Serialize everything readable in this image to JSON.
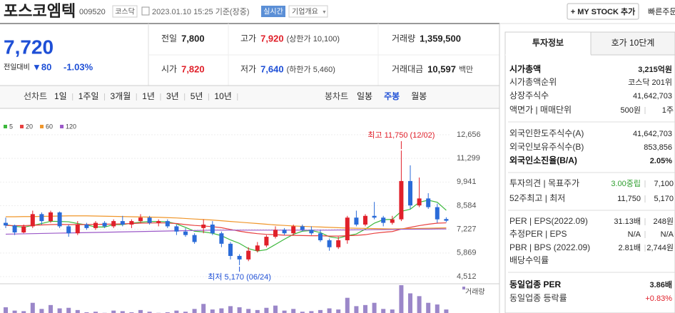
{
  "header": {
    "title": "포스코엠텍",
    "code": "009520",
    "market": "코스닥",
    "datetime": "2023.01.10 15:25 기준(장중)",
    "realtime": "실시간",
    "company_info": "기업개요",
    "mystock": "+ MY STOCK 추가",
    "quick_order": "빠른주문"
  },
  "price": {
    "current": "7,720",
    "change_label": "전일대비",
    "change": "▼80",
    "change_pct": "-1.03%"
  },
  "summary": {
    "rows": [
      [
        {
          "label": "전일",
          "value": "7,800",
          "color": "#222222"
        },
        {
          "label": "고가",
          "value": "7,920",
          "note": "(상한가 10,100)",
          "color": "#e0202a"
        },
        {
          "label": "거래량",
          "value": "1,359,500",
          "color": "#222222"
        }
      ],
      [
        {
          "label": "시가",
          "value": "7,820",
          "color": "#e0202a"
        },
        {
          "label": "저가",
          "value": "7,640",
          "note": "(하한가 5,460)",
          "color": "#1e4fd6"
        },
        {
          "label": "거래대금",
          "value": "10,597",
          "note": "백만",
          "color": "#222222"
        }
      ]
    ]
  },
  "tabs": {
    "line_label": "선차트",
    "line_periods": [
      "1일",
      "1주일",
      "3개월",
      "1년",
      "3년",
      "5년",
      "10년"
    ],
    "candle_label": "봉차트",
    "candle_periods": [
      "일봉",
      "주봉",
      "월봉"
    ],
    "selected_candle_period": 1
  },
  "chart": {
    "type": "candlestick",
    "ylim": [
      4512,
      12656
    ],
    "yticks": [
      {
        "value": 12656,
        "label": "12,656"
      },
      {
        "value": 11299,
        "label": "11,299"
      },
      {
        "value": 9941,
        "label": "9,941"
      },
      {
        "value": 8584,
        "label": "8,584"
      },
      {
        "value": 7227,
        "label": "7,227"
      },
      {
        "value": 5869,
        "label": "5,869"
      },
      {
        "value": 4512,
        "label": "4,512"
      }
    ],
    "up_color": "#e0202a",
    "down_color": "#2a6bd8",
    "candles": [
      {
        "open": 7600,
        "high": 7900,
        "low": 7300,
        "close": 7450
      },
      {
        "open": 7450,
        "high": 7500,
        "low": 6900,
        "close": 7050
      },
      {
        "open": 7050,
        "high": 7500,
        "low": 7000,
        "close": 7400
      },
      {
        "open": 7400,
        "high": 8300,
        "low": 7300,
        "close": 8100
      },
      {
        "open": 8100,
        "high": 8200,
        "low": 7500,
        "close": 7700
      },
      {
        "open": 7700,
        "high": 8300,
        "low": 7600,
        "close": 8200
      },
      {
        "open": 8200,
        "high": 8250,
        "low": 7300,
        "close": 7400
      },
      {
        "open": 7400,
        "high": 7500,
        "low": 6800,
        "close": 7000
      },
      {
        "open": 7000,
        "high": 7700,
        "low": 6900,
        "close": 7500
      },
      {
        "open": 7500,
        "high": 7600,
        "low": 7200,
        "close": 7300
      },
      {
        "open": 7300,
        "high": 7700,
        "low": 7200,
        "close": 7600
      },
      {
        "open": 7600,
        "high": 7700,
        "low": 7300,
        "close": 7400
      },
      {
        "open": 7400,
        "high": 7800,
        "low": 7300,
        "close": 7700
      },
      {
        "open": 7700,
        "high": 8000,
        "low": 7400,
        "close": 7500
      },
      {
        "open": 7500,
        "high": 7800,
        "low": 7300,
        "close": 7700
      },
      {
        "open": 7700,
        "high": 8100,
        "low": 7600,
        "close": 7900
      },
      {
        "open": 7900,
        "high": 8000,
        "low": 7500,
        "close": 7600
      },
      {
        "open": 7600,
        "high": 7800,
        "low": 7400,
        "close": 7700
      },
      {
        "open": 7700,
        "high": 7800,
        "low": 7300,
        "close": 7400
      },
      {
        "open": 7400,
        "high": 7500,
        "low": 6900,
        "close": 7100
      },
      {
        "open": 7100,
        "high": 7300,
        "low": 6800,
        "close": 6900
      },
      {
        "open": 6900,
        "high": 7000,
        "low": 6400,
        "close": 6500
      },
      {
        "open": 7300,
        "high": 7800,
        "low": 7000,
        "close": 7500
      },
      {
        "open": 7500,
        "high": 7700,
        "low": 6900,
        "close": 7000
      },
      {
        "open": 7000,
        "high": 7100,
        "low": 6200,
        "close": 6400
      },
      {
        "open": 6400,
        "high": 6500,
        "low": 5500,
        "close": 5700
      },
      {
        "open": 5700,
        "high": 5800,
        "low": 5170,
        "close": 5500
      },
      {
        "open": 5500,
        "high": 6200,
        "low": 5400,
        "close": 6000
      },
      {
        "open": 6000,
        "high": 6500,
        "low": 5900,
        "close": 6300
      },
      {
        "open": 6300,
        "high": 6900,
        "low": 6200,
        "close": 6800
      },
      {
        "open": 6800,
        "high": 7400,
        "low": 6700,
        "close": 7200
      },
      {
        "open": 7200,
        "high": 7300,
        "low": 6900,
        "close": 7000
      },
      {
        "open": 7000,
        "high": 7500,
        "low": 6900,
        "close": 7400
      },
      {
        "open": 7400,
        "high": 7500,
        "low": 7100,
        "close": 7200
      },
      {
        "open": 7200,
        "high": 7400,
        "low": 6900,
        "close": 7000
      },
      {
        "open": 7000,
        "high": 7200,
        "low": 6500,
        "close": 6600
      },
      {
        "open": 6600,
        "high": 6700,
        "low": 6000,
        "close": 6200
      },
      {
        "open": 6200,
        "high": 6800,
        "low": 6100,
        "close": 6600
      },
      {
        "open": 6600,
        "high": 8000,
        "low": 6400,
        "close": 7900
      },
      {
        "open": 7900,
        "high": 8300,
        "low": 7400,
        "close": 7500
      },
      {
        "open": 7500,
        "high": 8100,
        "low": 7400,
        "close": 8000
      },
      {
        "open": 8000,
        "high": 8800,
        "low": 7800,
        "close": 7900
      },
      {
        "open": 7900,
        "high": 8000,
        "low": 7400,
        "close": 7600
      },
      {
        "open": 7600,
        "high": 8000,
        "low": 7500,
        "close": 7800
      },
      {
        "open": 7800,
        "high": 11750,
        "low": 7700,
        "close": 10000
      },
      {
        "open": 10000,
        "high": 10900,
        "low": 8400,
        "close": 8600
      },
      {
        "open": 8600,
        "high": 10200,
        "low": 8500,
        "close": 9000
      },
      {
        "open": 9000,
        "high": 9300,
        "low": 8400,
        "close": 8500
      },
      {
        "open": 8500,
        "high": 8700,
        "low": 7600,
        "close": 7800
      },
      {
        "open": 7820,
        "high": 7920,
        "low": 7640,
        "close": 7720
      }
    ],
    "series": [
      {
        "name": "5",
        "color": "#3cb83c",
        "values": [
          7500,
          7400,
          7350,
          7450,
          7560,
          7690,
          7680,
          7660,
          7560,
          7480,
          7360,
          7360,
          7500,
          7500,
          7580,
          7640,
          7680,
          7680,
          7660,
          7540,
          7340,
          7120,
          7080,
          7000,
          6860,
          6620,
          6420,
          6120,
          5980,
          6060,
          6360,
          6660,
          6940,
          7120,
          7160,
          7040,
          6800,
          6720,
          6860,
          6960,
          7240,
          7580,
          7780,
          7800,
          8260,
          8380,
          8780,
          8900,
          8780,
          8320
        ]
      },
      {
        "name": "20",
        "color": "#e8403f",
        "values": [
          7450,
          7440,
          7440,
          7460,
          7480,
          7500,
          7510,
          7500,
          7500,
          7500,
          7510,
          7520,
          7530,
          7540,
          7560,
          7580,
          7590,
          7600,
          7590,
          7560,
          7500,
          7450,
          7420,
          7380,
          7320,
          7220,
          7120,
          7040,
          6980,
          6940,
          6920,
          6890,
          6880,
          6870,
          6860,
          6860,
          6840,
          6840,
          6860,
          6880,
          6920,
          7000,
          7060,
          7100,
          7240,
          7340,
          7440,
          7520,
          7580,
          7600
        ]
      },
      {
        "name": "60",
        "color": "#f0962a",
        "values": [
          7950,
          7950,
          7960,
          7960,
          7970,
          7980,
          7990,
          8000,
          8000,
          8000,
          7990,
          7980,
          7970,
          7960,
          7950,
          7940,
          7930,
          7920,
          7900,
          7880,
          7850,
          7820,
          7790,
          7760,
          7720,
          7680,
          7640,
          7600,
          7560,
          7520,
          7480,
          7450,
          7420,
          7400,
          7380,
          7360,
          7340,
          7320,
          7300,
          7290,
          7280,
          7270,
          7260,
          7250,
          7260,
          7270,
          7280,
          7290,
          7300,
          7310
        ]
      },
      {
        "name": "120",
        "color": "#9b59c8",
        "values": [
          6950,
          6960,
          6970,
          6980,
          6990,
          7000,
          7010,
          7020,
          7030,
          7040,
          7050,
          7060,
          7070,
          7080,
          7090,
          7100,
          7110,
          7120,
          7130,
          7140,
          7150,
          7160,
          7170,
          7180,
          7180,
          7180,
          7180,
          7180,
          7180,
          7180,
          7180,
          7180,
          7180,
          7180,
          7180,
          7180,
          7180,
          7190,
          7190,
          7200,
          7200,
          7210,
          7210,
          7220,
          7230,
          7230,
          7240,
          7240,
          7250,
          7250
        ]
      }
    ],
    "high_note": "최고 11,750 (12/02)",
    "low_note": "최저 5,170 (06/24)",
    "volume_label": "거래량",
    "volume_color": "#9b87c9",
    "volumes": [
      1800000,
      1200000,
      1100000,
      2600000,
      1500000,
      2200000,
      1600000,
      1700000,
      1300000,
      900000,
      1000000,
      800000,
      1200000,
      1100000,
      900000,
      1300000,
      1000000,
      800000,
      900000,
      1200000,
      1000000,
      1500000,
      2400000,
      1400000,
      1600000,
      2000000,
      1800000,
      1500000,
      1300000,
      1700000,
      2100000,
      1200000,
      1500000,
      1000000,
      1100000,
      1300000,
      1600000,
      1400000,
      3500000,
      2000000,
      2200000,
      2600000,
      1500000,
      1400000,
      8200000,
      4300000,
      3800000,
      2600000,
      2300000,
      1400000
    ]
  },
  "info_panel": {
    "tabs": [
      "투자정보",
      "호가 10단계"
    ],
    "groups": [
      [
        {
          "label": "시가총액",
          "value": "3,215억원",
          "bold": true
        },
        {
          "label": "시가총액순위",
          "value": "코스닥 201위"
        },
        {
          "label": "상장주식수",
          "value": "41,642,703"
        },
        {
          "label": "액면가 | 매매단위",
          "value": "500원",
          "value2": "1주"
        }
      ],
      [
        {
          "label": "외국인한도주식수(A)",
          "value": "41,642,703"
        },
        {
          "label": "외국인보유주식수(B)",
          "value": "853,856"
        },
        {
          "label": "외국인소진율(B/A)",
          "value": "2.05%",
          "bold": true
        }
      ],
      [
        {
          "label": "투자의견 | 목표주가",
          "value": "3.00중립",
          "value2": "7,100",
          "color": "#2e9e2e"
        },
        {
          "label": "52주최고 | 최저",
          "value": "11,750",
          "value2": "5,170"
        }
      ],
      [
        {
          "label": "PER | EPS(2022.09)",
          "value": "31.13배",
          "value2": "248원"
        },
        {
          "label": "추정PER | EPS",
          "value": "N/A",
          "value2": "N/A"
        },
        {
          "label": "PBR | BPS (2022.09)",
          "value": "2.81배",
          "value2": "2,744원"
        },
        {
          "label": "배당수익률"
        }
      ],
      [
        {
          "label": "동일업종 PER",
          "value": "3.86배",
          "bold": true
        },
        {
          "label": "동일업종 등락률",
          "value": "+0.83%",
          "color": "#e0202a"
        }
      ]
    ]
  }
}
